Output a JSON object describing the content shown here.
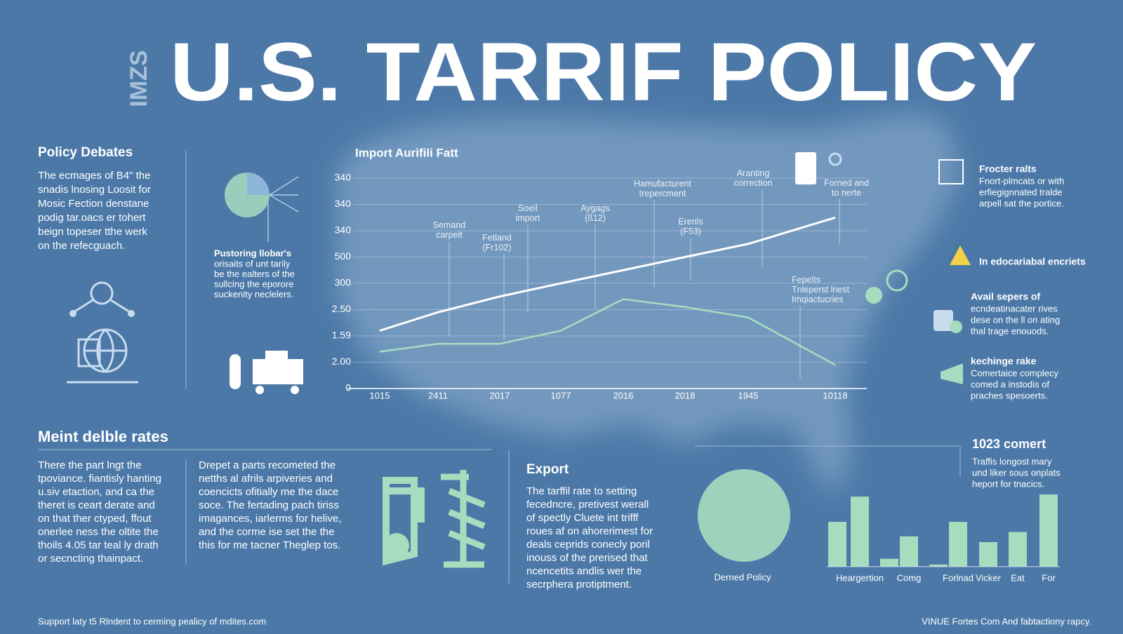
{
  "side_label": "IMZS",
  "title": "U.S. TARRIF POLICY",
  "policy_debates": {
    "heading": "Policy Debates",
    "lines": [
      "The ecmages of B4\" the",
      "snadis lnosing Loosit for",
      "Mosic Fection denstane",
      "podig tar.oacs er tohert",
      "beign topeser tthe werk",
      "on the refecguach."
    ]
  },
  "pie_caption": {
    "heading": "Pustoring llobar's",
    "lines": [
      "orisaits of unt tarily",
      "be the ealters of the",
      "sullcing the eporore",
      "suckenity neclelers."
    ]
  },
  "chart_data": [
    {
      "type": "line",
      "title": "Import Aurifili Fatt",
      "categories": [
        "1015",
        "2411",
        "2017",
        "1077",
        "2016",
        "2018",
        "1945",
        "10118"
      ],
      "series": [
        {
          "name": "white",
          "color": "#ffffff",
          "values": [
            2.2,
            2.9,
            3.5,
            4.0,
            4.5,
            5.0,
            5.5,
            6.5
          ]
        },
        {
          "name": "green",
          "color": "#a8dcbf",
          "values": [
            1.4,
            1.7,
            1.7,
            2.2,
            3.4,
            3.1,
            2.7,
            0.9
          ]
        }
      ],
      "ylim": [
        0,
        8
      ],
      "yticks": [
        0,
        {
          "value": 1,
          "label": "2.00"
        },
        {
          "value": 2,
          "label": "1.59"
        },
        {
          "value": 3,
          "label": "2.50"
        },
        {
          "value": 4,
          "label": "300"
        },
        {
          "value": 5,
          "label": "500"
        },
        {
          "value": 6,
          "label": "340"
        },
        {
          "value": 7,
          "label": "340"
        },
        {
          "value": 8,
          "label": "340"
        }
      ],
      "grid": true,
      "annotations": [
        "Semand carpelt",
        "Soeil import",
        "Fetland (Fr102)",
        "Aygags (ß12)",
        "Hamufacturent trepercment",
        "Erenls (F53)",
        "Aranting correction",
        "Forned and to nerte",
        "Fepelts Tnleperst lnest Imqiactucries"
      ]
    },
    {
      "type": "bar",
      "title": "1023 comert",
      "categories": [
        null,
        "Heargertion",
        null,
        "Comg",
        null,
        "Forlnad",
        "Vicker",
        "Eat",
        "For"
      ],
      "values": [
        62,
        97,
        11,
        42,
        3,
        62,
        34,
        48,
        100
      ],
      "color": "#a8dcbf",
      "ylim": [
        0,
        100
      ]
    }
  ],
  "right_panel": [
    {
      "heading": "Frocter ralts",
      "lines": [
        "Fnort-plmcats or with",
        "erfiegignnated tralde",
        "arpell sat the portice."
      ]
    },
    {
      "heading": "In edocariabal encriets",
      "lines": []
    },
    {
      "heading": "Avail sepers of",
      "lines": [
        "ecndeatinacater rives",
        "dese on the ll on ating",
        "thal trage enouods."
      ]
    },
    {
      "heading": "kechinge rake",
      "lines": [
        "Comertaice complecy",
        "comed a instodis of",
        "praches spesoerts."
      ]
    }
  ],
  "bottom_left": {
    "heading": "Meint delble rates",
    "col1": [
      "There  the  part  lngt  the",
      "tpoviance. fiantisly hanting",
      "u.siv etaction, and ca the",
      "theret is ceart derate and",
      "on that ther ctyped, ffout",
      "onerlee ness the oltite the",
      "thoils 4.05 tar teal ly drath",
      "or secncting thainpact."
    ],
    "col2": [
      "Drepet a parts recometed the",
      "netths al afrils arpiveries and",
      "coencicts ofitially me the dace",
      "soce. The fertading pach tiriss",
      "imagances, iarlerms for helive,",
      "and the corme ise set the the",
      "this for me tacner Theglep tos."
    ]
  },
  "export": {
    "heading": "Export",
    "lines": [
      "The tarffil rate to setting",
      "fecedncre, pretivest werall",
      "of  spectly Cluete int trifff",
      "roues af on ahorerimest for",
      "deals ceprids conecly poril",
      "inouss of the prerised that",
      "ncencetits andlis wer the",
      "secrphera protiptment."
    ]
  },
  "pie_label": "Derned Policy",
  "bar_notes": [
    "Traffis longost mary",
    "und liker sous onplats",
    "heport for tnacics."
  ],
  "footer_left": "Support laty t5 Rlndent to cerming pealicy of mdites.com",
  "footer_right": "VINUE Fortes Com And fabtactiony rapcy."
}
